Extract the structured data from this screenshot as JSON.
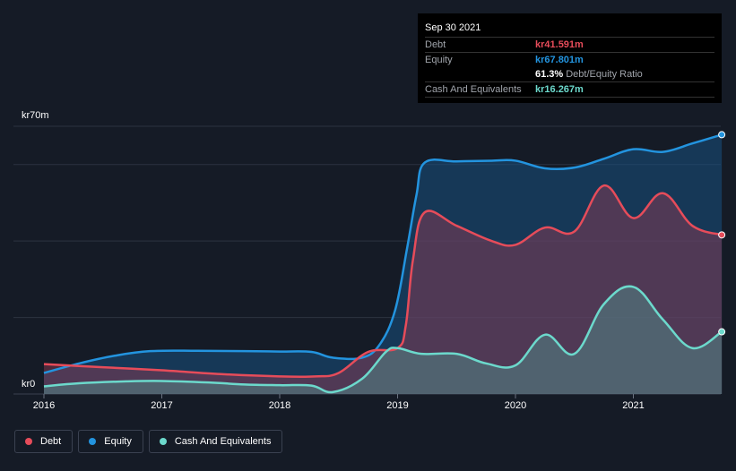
{
  "chart_data": {
    "type": "area",
    "y_unit_labels": [
      "kr70m",
      "kr0"
    ],
    "ylim": [
      0,
      70
    ],
    "xlim": [
      2016,
      2021.75
    ],
    "x_ticks": [
      2016,
      2017,
      2018,
      2019,
      2020,
      2021
    ],
    "x_tick_labels": [
      "2016",
      "2017",
      "2018",
      "2019",
      "2020",
      "2021"
    ],
    "gridlines": [
      20,
      40,
      60,
      70
    ],
    "series": [
      {
        "name": "Equity",
        "color": "#2394df",
        "points": [
          [
            2016,
            5.5
          ],
          [
            2016.3,
            8
          ],
          [
            2016.6,
            10
          ],
          [
            2016.9,
            11.2
          ],
          [
            2017.3,
            11.3
          ],
          [
            2017.7,
            11.2
          ],
          [
            2018.0,
            11.1
          ],
          [
            2018.27,
            11
          ],
          [
            2018.45,
            9.5
          ],
          [
            2018.7,
            9.5
          ],
          [
            2018.85,
            13
          ],
          [
            2018.98,
            22
          ],
          [
            2019.08,
            38
          ],
          [
            2019.16,
            52
          ],
          [
            2019.23,
            60.5
          ],
          [
            2019.5,
            60.8
          ],
          [
            2019.8,
            61
          ],
          [
            2020.0,
            61
          ],
          [
            2020.25,
            59
          ],
          [
            2020.5,
            59.2
          ],
          [
            2020.75,
            61.5
          ],
          [
            2021.0,
            64
          ],
          [
            2021.25,
            63.3
          ],
          [
            2021.5,
            65.5
          ],
          [
            2021.75,
            67.801
          ]
        ]
      },
      {
        "name": "Debt",
        "color": "#e64c5a",
        "points": [
          [
            2016,
            7.8
          ],
          [
            2016.5,
            7
          ],
          [
            2017.0,
            6.2
          ],
          [
            2017.5,
            5.2
          ],
          [
            2018.0,
            4.6
          ],
          [
            2018.3,
            4.6
          ],
          [
            2018.5,
            5.5
          ],
          [
            2018.75,
            11
          ],
          [
            2019.0,
            12
          ],
          [
            2019.07,
            18
          ],
          [
            2019.13,
            35
          ],
          [
            2019.23,
            47.5
          ],
          [
            2019.5,
            44
          ],
          [
            2019.8,
            40
          ],
          [
            2020.0,
            39
          ],
          [
            2020.25,
            43.5
          ],
          [
            2020.5,
            42.5
          ],
          [
            2020.75,
            54.5
          ],
          [
            2021.0,
            46
          ],
          [
            2021.25,
            52.5
          ],
          [
            2021.5,
            44
          ],
          [
            2021.75,
            41.591
          ]
        ]
      },
      {
        "name": "Cash And Equivalents",
        "color": "#6cd9cc",
        "points": [
          [
            2016,
            2
          ],
          [
            2016.3,
            2.8
          ],
          [
            2016.7,
            3.3
          ],
          [
            2017.0,
            3.4
          ],
          [
            2017.4,
            3
          ],
          [
            2017.7,
            2.5
          ],
          [
            2018.0,
            2.3
          ],
          [
            2018.27,
            2.2
          ],
          [
            2018.45,
            0.5
          ],
          [
            2018.7,
            4
          ],
          [
            2018.9,
            11
          ],
          [
            2019.0,
            12
          ],
          [
            2019.2,
            10.5
          ],
          [
            2019.5,
            10.5
          ],
          [
            2019.75,
            8
          ],
          [
            2020.0,
            7.5
          ],
          [
            2020.25,
            15.5
          ],
          [
            2020.5,
            10.5
          ],
          [
            2020.75,
            23.5
          ],
          [
            2021.0,
            28
          ],
          [
            2021.25,
            19.5
          ],
          [
            2021.5,
            12
          ],
          [
            2021.75,
            16.267
          ]
        ]
      }
    ],
    "tooltip": {
      "date": "Sep 30 2021",
      "rows": [
        {
          "label": "Debt",
          "value": "kr41.591m",
          "color": "#e64c5a"
        },
        {
          "label": "Equity",
          "value": "kr67.801m",
          "color": "#2394df"
        },
        {
          "label": "",
          "value": "61.3%",
          "suffix": "Debt/Equity Ratio",
          "color": "#ffffff"
        },
        {
          "label": "Cash And Equivalents",
          "value": "kr16.267m",
          "color": "#6cd9cc"
        }
      ]
    },
    "legend": [
      {
        "label": "Debt",
        "color": "#e64c5a"
      },
      {
        "label": "Equity",
        "color": "#2394df"
      },
      {
        "label": "Cash And Equivalents",
        "color": "#6cd9cc"
      }
    ]
  }
}
